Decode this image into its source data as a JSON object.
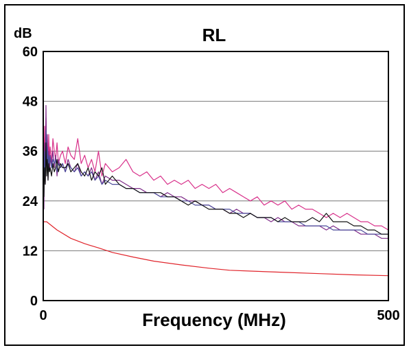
{
  "chart_data": {
    "type": "line",
    "title": "RL",
    "ylabel": "dB",
    "xlabel": "Frequency (MHz)",
    "xlim": [
      0,
      500
    ],
    "ylim": [
      0,
      60
    ],
    "x_ticks": [
      "0",
      "500"
    ],
    "y_ticks": [
      "0",
      "12",
      "24",
      "36",
      "48",
      "60"
    ],
    "grid": true,
    "legend": "none",
    "series": [
      {
        "color": "#d8308a",
        "x": [
          1,
          2,
          3,
          4,
          5,
          6,
          7,
          8,
          9,
          10,
          12,
          14,
          16,
          18,
          20,
          22,
          25,
          28,
          32,
          36,
          40,
          45,
          50,
          55,
          60,
          65,
          70,
          75,
          80,
          85,
          90,
          100,
          110,
          120,
          130,
          140,
          150,
          160,
          170,
          180,
          190,
          200,
          210,
          220,
          230,
          240,
          250,
          260,
          270,
          280,
          290,
          300,
          310,
          320,
          330,
          340,
          350,
          360,
          370,
          380,
          390,
          400,
          410,
          420,
          430,
          440,
          450,
          460,
          470,
          480,
          490,
          500
        ],
        "y": [
          30,
          42,
          33,
          44,
          35,
          38,
          32,
          40,
          34,
          37,
          33,
          39,
          36,
          34,
          38,
          33,
          35,
          36,
          33,
          37,
          35,
          34,
          39,
          33,
          35,
          32,
          34,
          31,
          36,
          30,
          33,
          31,
          32,
          34,
          31,
          30,
          31,
          29,
          30,
          28,
          29,
          28,
          29,
          27,
          28,
          27,
          28,
          26,
          27,
          26,
          25,
          24,
          25,
          23,
          24,
          23,
          24,
          22,
          23,
          22,
          22,
          21,
          20,
          21,
          20,
          21,
          20,
          19,
          19,
          18,
          18,
          17
        ]
      },
      {
        "color": "#7e2a88",
        "x": [
          1,
          2,
          3,
          4,
          5,
          6,
          7,
          8,
          9,
          10,
          12,
          14,
          16,
          18,
          20,
          22,
          25,
          28,
          32,
          36,
          40,
          45,
          50,
          55,
          60,
          65,
          70,
          75,
          80,
          85,
          90,
          100,
          110,
          120,
          130,
          140,
          150,
          160,
          170,
          180,
          190,
          200,
          210,
          220,
          230,
          240,
          250,
          260,
          270,
          280,
          290,
          300,
          310,
          320,
          330,
          340,
          350,
          360,
          370,
          380,
          390,
          400,
          410,
          420,
          430,
          440,
          450,
          460,
          470,
          480,
          490,
          500
        ],
        "y": [
          22,
          38,
          28,
          47,
          32,
          40,
          29,
          36,
          31,
          34,
          33,
          36,
          32,
          35,
          30,
          34,
          32,
          33,
          31,
          34,
          32,
          31,
          33,
          30,
          31,
          30,
          32,
          29,
          31,
          28,
          30,
          29,
          29,
          28,
          27,
          27,
          26,
          26,
          25,
          26,
          25,
          25,
          24,
          24,
          23,
          23,
          22,
          22,
          21,
          22,
          21,
          21,
          20,
          20,
          19,
          20,
          19,
          19,
          18,
          18,
          18,
          18,
          17,
          18,
          17,
          17,
          17,
          16,
          16,
          16,
          15,
          15
        ]
      },
      {
        "color": "#4a4a9a",
        "x": [
          1,
          2,
          3,
          4,
          5,
          6,
          7,
          8,
          9,
          10,
          12,
          14,
          16,
          18,
          20,
          22,
          25,
          28,
          32,
          36,
          40,
          45,
          50,
          55,
          60,
          65,
          70,
          75,
          80,
          85,
          90,
          100,
          110,
          120,
          130,
          140,
          150,
          160,
          170,
          180,
          190,
          200,
          210,
          220,
          230,
          240,
          250,
          260,
          270,
          280,
          290,
          300,
          310,
          320,
          330,
          340,
          350,
          360,
          370,
          380,
          390,
          400,
          410,
          420,
          430,
          440,
          450,
          460,
          470,
          480,
          490,
          500
        ],
        "y": [
          26,
          36,
          30,
          41,
          33,
          37,
          31,
          35,
          33,
          35,
          32,
          34,
          33,
          34,
          31,
          33,
          32,
          33,
          31,
          33,
          32,
          31,
          32,
          30,
          31,
          30,
          31,
          29,
          30,
          28,
          29,
          28,
          28,
          27,
          27,
          26,
          26,
          26,
          25,
          25,
          25,
          24,
          24,
          23,
          23,
          23,
          22,
          22,
          22,
          21,
          21,
          21,
          20,
          20,
          20,
          19,
          19,
          19,
          19,
          18,
          18,
          18,
          18,
          17,
          17,
          17,
          17,
          17,
          16,
          16,
          16,
          16
        ]
      },
      {
        "color": "#111111",
        "x": [
          1,
          2,
          3,
          4,
          5,
          6,
          7,
          8,
          9,
          10,
          12,
          14,
          16,
          18,
          20,
          22,
          25,
          28,
          32,
          36,
          40,
          45,
          50,
          55,
          60,
          65,
          70,
          75,
          80,
          85,
          90,
          100,
          110,
          120,
          130,
          140,
          150,
          160,
          170,
          180,
          190,
          200,
          210,
          220,
          230,
          240,
          250,
          260,
          270,
          280,
          290,
          300,
          310,
          320,
          330,
          340,
          350,
          360,
          370,
          380,
          390,
          400,
          410,
          420,
          430,
          440,
          450,
          460,
          470,
          480,
          490,
          500
        ],
        "y": [
          25,
          32,
          28,
          38,
          30,
          34,
          29,
          33,
          31,
          32,
          30,
          33,
          31,
          32,
          34,
          31,
          33,
          32,
          32,
          33,
          31,
          32,
          33,
          31,
          30,
          32,
          29,
          31,
          30,
          32,
          28,
          30,
          28,
          27,
          27,
          26,
          26,
          26,
          26,
          25,
          25,
          24,
          23,
          24,
          23,
          22,
          22,
          22,
          21,
          21,
          20,
          21,
          20,
          20,
          20,
          19,
          20,
          19,
          19,
          19,
          20,
          19,
          21,
          19,
          19,
          19,
          18,
          18,
          17,
          17,
          16,
          16
        ]
      },
      {
        "color": "#e0232a",
        "x": [
          0,
          5,
          20,
          40,
          60,
          80,
          100,
          130,
          160,
          200,
          240,
          270,
          300,
          350,
          400,
          450,
          500
        ],
        "y": [
          19,
          19,
          17,
          15,
          13.7,
          12.7,
          11.6,
          10.5,
          9.5,
          8.6,
          7.8,
          7.3,
          7.1,
          6.8,
          6.5,
          6.2,
          6.0
        ]
      }
    ]
  }
}
